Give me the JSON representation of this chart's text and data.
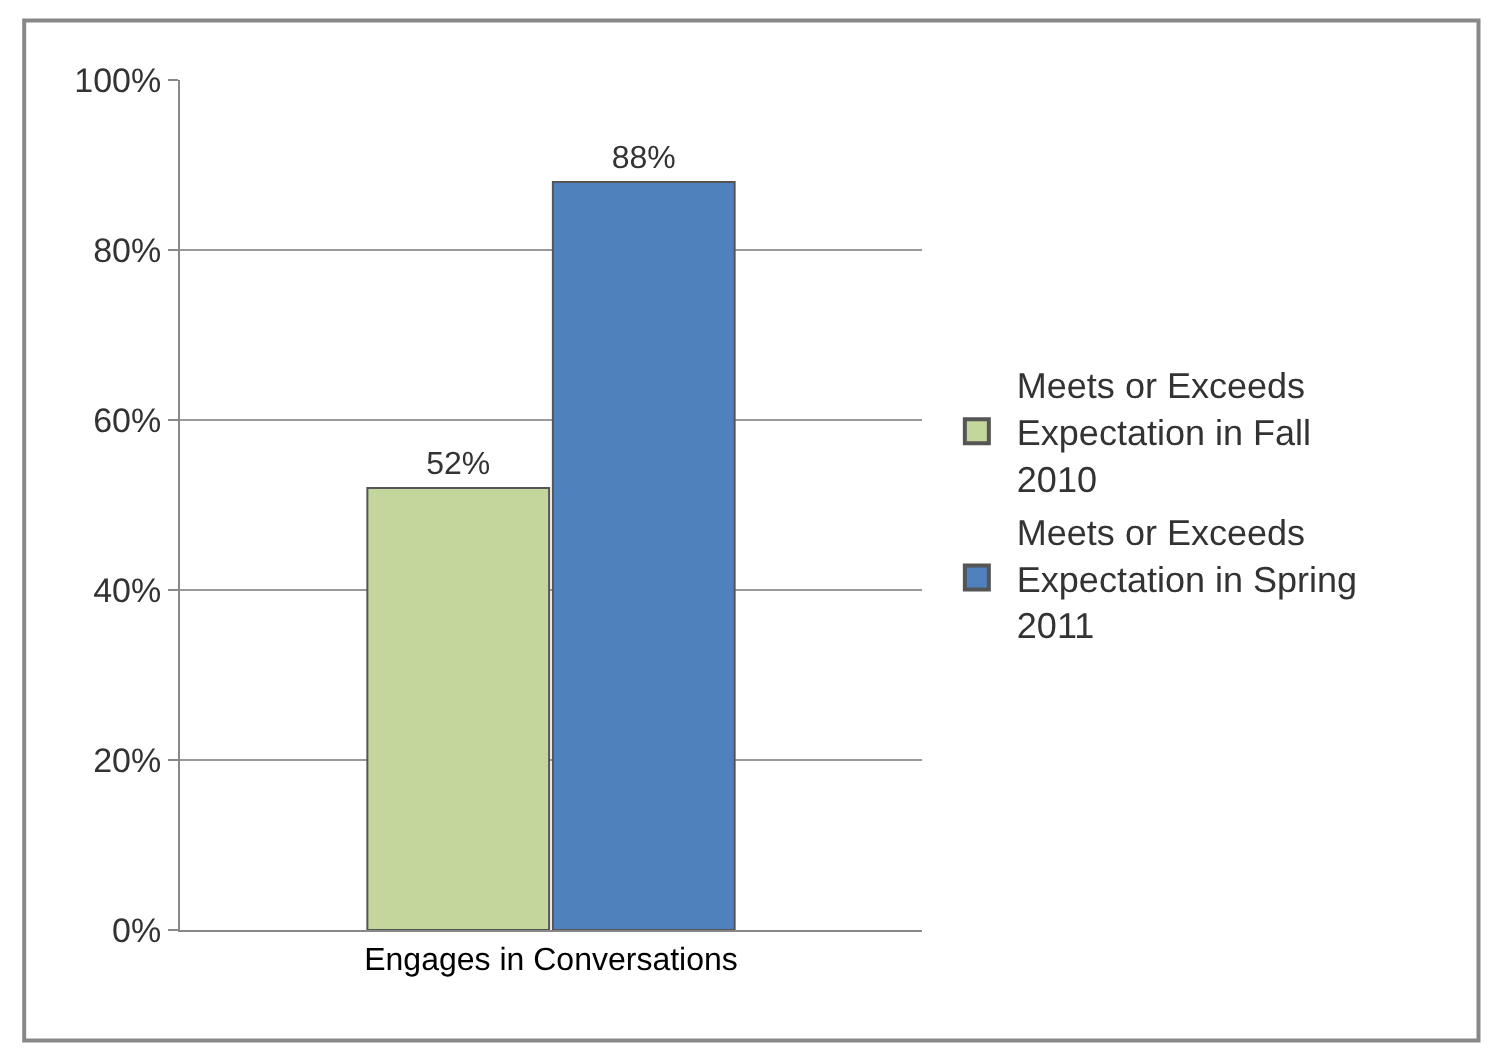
{
  "chart_data": {
    "type": "bar",
    "categories": [
      "Engages in Conversations"
    ],
    "series": [
      {
        "name": "Meets or Exceeds Expectation in Fall 2010",
        "color": "#c3d69b",
        "values": [
          52
        ],
        "value_labels": [
          "52%"
        ]
      },
      {
        "name": "Meets or Exceeds Expectation in Spring 2011",
        "color": "#4f81bd",
        "values": [
          88
        ],
        "value_labels": [
          "88%"
        ]
      }
    ],
    "ylim": [
      0,
      100
    ],
    "yticks": [
      {
        "value": 0,
        "label": "0%"
      },
      {
        "value": 20,
        "label": "20%"
      },
      {
        "value": 40,
        "label": "40%"
      },
      {
        "value": 60,
        "label": "60%"
      },
      {
        "value": 80,
        "label": "80%"
      },
      {
        "value": 100,
        "label": "100%"
      }
    ],
    "grid": "y",
    "legend": "right"
  }
}
